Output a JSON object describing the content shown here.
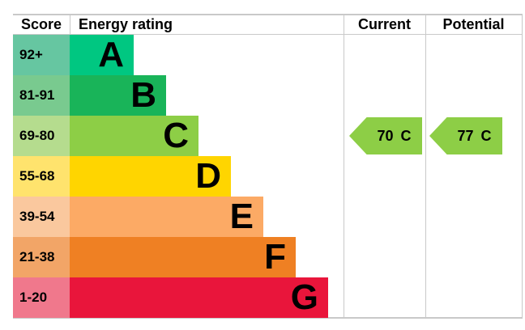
{
  "header": {
    "score": "Score",
    "energy_rating": "Energy rating",
    "current": "Current",
    "potential": "Potential"
  },
  "bands": [
    {
      "score": "92+",
      "letter": "A",
      "bar_color": "#00c781",
      "score_color": "#66c6a1"
    },
    {
      "score": "81-91",
      "letter": "B",
      "bar_color": "#19b459",
      "score_color": "#79ca8f"
    },
    {
      "score": "69-80",
      "letter": "C",
      "bar_color": "#8dce46",
      "score_color": "#b5dc8e"
    },
    {
      "score": "55-68",
      "letter": "D",
      "bar_color": "#ffd500",
      "score_color": "#ffe36d"
    },
    {
      "score": "39-54",
      "letter": "E",
      "bar_color": "#fcaa65",
      "score_color": "#fac89e"
    },
    {
      "score": "21-38",
      "letter": "F",
      "bar_color": "#ef8023",
      "score_color": "#f2a567"
    },
    {
      "score": "1-20",
      "letter": "G",
      "bar_color": "#e9153b",
      "score_color": "#f0788c"
    }
  ],
  "current": {
    "value": "70",
    "band": "C",
    "arrow_color": "#8dce46",
    "band_index": 2
  },
  "potential": {
    "value": "77",
    "band": "C",
    "arrow_color": "#8dce46",
    "band_index": 2
  },
  "chart_data": {
    "type": "bar",
    "subtype": "epc-energy-rating",
    "title": "Energy rating",
    "columns": [
      "Score",
      "Energy rating",
      "Current",
      "Potential"
    ],
    "categories": [
      "A",
      "B",
      "C",
      "D",
      "E",
      "F",
      "G"
    ],
    "score_ranges": [
      "92+",
      "81-91",
      "69-80",
      "55-68",
      "39-54",
      "21-38",
      "1-20"
    ],
    "band_colors": [
      "#00c781",
      "#19b459",
      "#8dce46",
      "#ffd500",
      "#fcaa65",
      "#ef8023",
      "#e9153b"
    ],
    "bar_lengths_relative": [
      1,
      2,
      3,
      4,
      5,
      6,
      7
    ],
    "current_rating": {
      "value": 70,
      "band": "C"
    },
    "potential_rating": {
      "value": 77,
      "band": "C"
    }
  }
}
